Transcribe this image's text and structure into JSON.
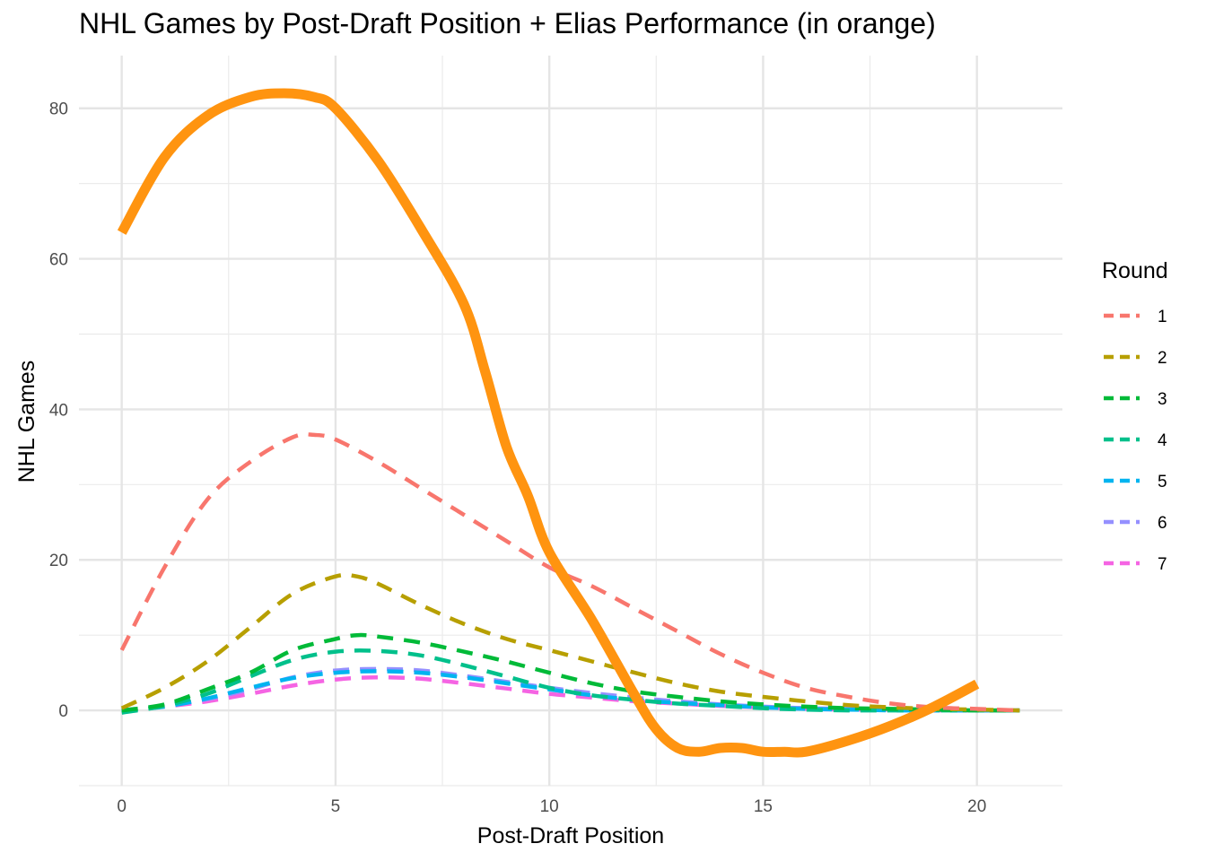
{
  "chart_data": {
    "type": "line",
    "title": "NHL Games by Post-Draft Position + Elias Performance (in orange)",
    "xlabel": "Post-Draft Position",
    "ylabel": "NHL Games",
    "xlim": [
      -1,
      22
    ],
    "ylim": [
      -10,
      87
    ],
    "x_ticks": [
      0,
      5,
      10,
      15,
      20
    ],
    "y_ticks": [
      0,
      20,
      40,
      60,
      80
    ],
    "grid": true,
    "legend": {
      "title": "Round",
      "position": "right",
      "labels": [
        "1",
        "2",
        "3",
        "4",
        "5",
        "6",
        "7"
      ]
    },
    "series": [
      {
        "name": "1",
        "color": "#F8766D",
        "dash": true,
        "x": [
          0,
          1,
          2,
          3,
          4,
          4.5,
          5,
          6,
          7,
          8,
          9,
          10,
          11,
          12,
          13,
          14,
          15,
          16,
          17,
          18,
          19,
          20,
          21
        ],
        "y": [
          8,
          19,
          28,
          33,
          36.3,
          36.6,
          36,
          33,
          29.5,
          26,
          22.5,
          19,
          16.5,
          13.5,
          10.5,
          7.5,
          5,
          3,
          1.8,
          0.9,
          0.4,
          0.2,
          0
        ]
      },
      {
        "name": "2",
        "color": "#B79F00",
        "dash": true,
        "x": [
          0,
          1,
          2,
          3,
          4,
          5,
          5.5,
          6,
          7,
          8,
          9,
          10,
          11,
          12,
          13,
          14,
          15,
          16,
          17,
          18,
          19,
          20,
          21
        ],
        "y": [
          0.3,
          3,
          6.5,
          11,
          15.5,
          17.8,
          17.8,
          16.8,
          14,
          11.5,
          9.5,
          8,
          6.5,
          5,
          3.6,
          2.5,
          1.8,
          1.2,
          0.7,
          0.4,
          0.2,
          0.1,
          0
        ]
      },
      {
        "name": "3",
        "color": "#00BA38",
        "dash": true,
        "x": [
          0,
          1,
          2,
          3,
          4,
          5,
          5.5,
          6,
          7,
          8,
          9,
          10,
          11,
          12,
          13,
          14,
          15,
          16,
          17,
          18,
          19,
          20,
          21
        ],
        "y": [
          0,
          0.8,
          2.8,
          5,
          8,
          9.5,
          10,
          9.8,
          9,
          7.8,
          6.5,
          5,
          3.6,
          2.5,
          1.8,
          1.2,
          0.8,
          0.5,
          0.3,
          0.2,
          0.1,
          0,
          0
        ]
      },
      {
        "name": "4",
        "color": "#00C08B",
        "dash": true,
        "x": [
          0,
          1,
          2,
          3,
          4,
          5,
          6,
          7,
          8,
          9,
          10,
          11,
          12,
          13,
          14,
          15,
          16,
          17,
          18,
          19,
          20,
          21
        ],
        "y": [
          -0.3,
          0.6,
          2.2,
          4.5,
          6.7,
          7.8,
          7.9,
          7.3,
          6,
          4.5,
          3,
          2,
          1.4,
          0.9,
          0.6,
          0.3,
          0.1,
          0,
          0,
          0,
          0,
          0
        ]
      },
      {
        "name": "5",
        "color": "#00B4F0",
        "dash": true,
        "x": [
          0,
          1,
          2,
          3,
          4,
          5,
          6,
          7,
          8,
          9,
          10,
          11,
          12,
          13,
          14,
          15,
          16,
          17,
          18,
          19,
          20,
          21
        ],
        "y": [
          0,
          0.5,
          1.6,
          3,
          4.3,
          5,
          5.2,
          5,
          4.4,
          3.6,
          2.8,
          2,
          1.4,
          1,
          0.7,
          0.4,
          0.2,
          0.1,
          0,
          0,
          0,
          0
        ]
      },
      {
        "name": "6",
        "color": "#9590FF",
        "dash": true,
        "x": [
          0,
          1,
          2,
          3,
          4,
          5,
          6,
          7,
          8,
          9,
          10,
          11,
          12,
          13,
          14,
          15,
          16,
          17,
          18,
          19,
          20,
          21
        ],
        "y": [
          0,
          0.6,
          1.5,
          2.8,
          4.4,
          5.3,
          5.5,
          5.3,
          4.6,
          3.8,
          3,
          2.3,
          1.7,
          1.2,
          0.8,
          0.5,
          0.3,
          0.2,
          0.1,
          0,
          0,
          0
        ]
      },
      {
        "name": "7",
        "color": "#F564E3",
        "dash": true,
        "x": [
          0,
          1,
          2,
          3,
          4,
          5,
          6,
          7,
          8,
          9,
          10,
          11,
          12,
          13,
          14,
          15,
          16,
          17,
          18,
          19,
          20,
          21
        ],
        "y": [
          0,
          0.5,
          1.2,
          2.2,
          3.3,
          4.1,
          4.4,
          4.2,
          3.6,
          2.9,
          2.2,
          1.7,
          1.2,
          0.9,
          0.6,
          0.4,
          0.2,
          0.1,
          0.1,
          0,
          0,
          0
        ]
      },
      {
        "color": "#FF9410",
        "dash": false,
        "x": [
          0,
          1,
          2,
          3,
          3.8,
          4.5,
          5,
          6,
          7,
          8,
          8.5,
          9,
          9.5,
          10,
          11,
          12,
          12.5,
          13,
          13.5,
          14,
          14.5,
          15,
          15.5,
          16,
          17,
          18,
          19,
          20
        ],
        "y": [
          63.5,
          73.5,
          79,
          81.5,
          82,
          81.5,
          80,
          73,
          64,
          54,
          45,
          35,
          28.5,
          21,
          12,
          2,
          -2.5,
          -5,
          -5.5,
          -5,
          -5,
          -5.5,
          -5.5,
          -5.5,
          -4,
          -2,
          0.5,
          3.5
        ]
      }
    ]
  }
}
